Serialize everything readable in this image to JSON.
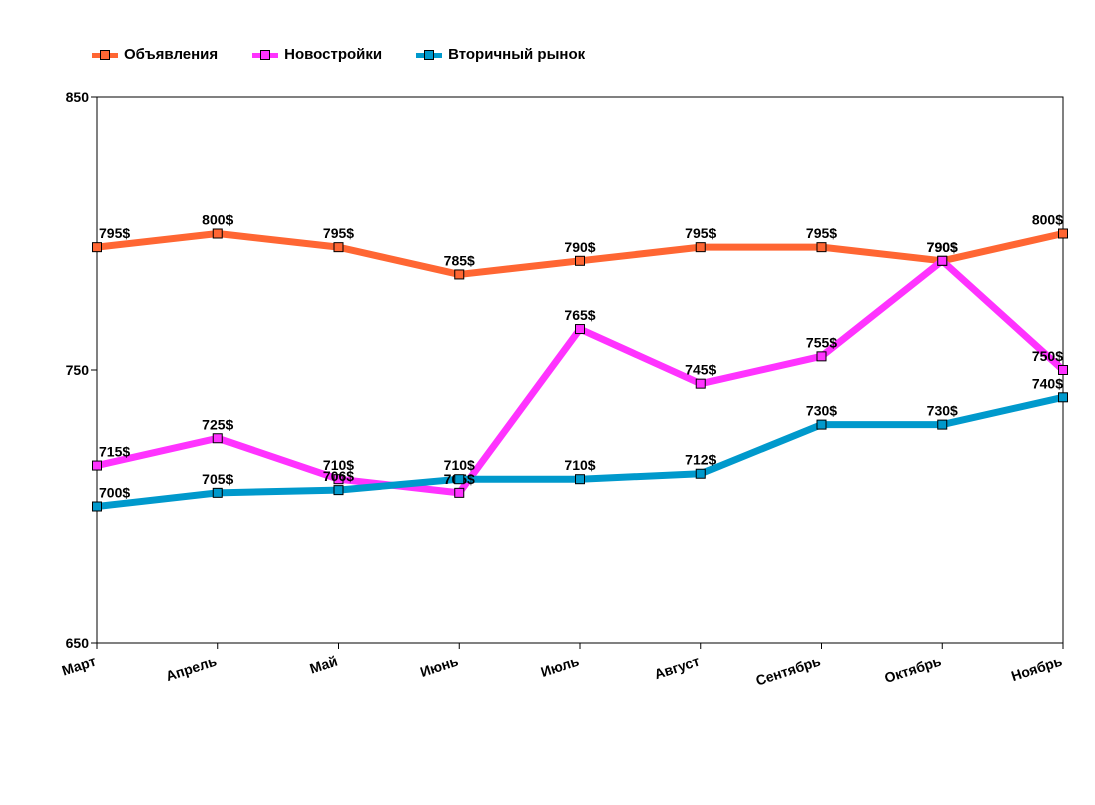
{
  "chart_data": {
    "type": "line",
    "categories": [
      "Март",
      "Апрель",
      "Май",
      "Июнь",
      "Июль",
      "Август",
      "Сентябрь",
      "Октябрь",
      "Ноябрь"
    ],
    "ylim": [
      650,
      850
    ],
    "yticks": [
      650,
      750,
      850
    ],
    "series": [
      {
        "name": "Объявления",
        "color": "#ff6633",
        "values": [
          795,
          800,
          795,
          785,
          790,
          795,
          795,
          790,
          800
        ],
        "labels": [
          "795$",
          "800$",
          "795$",
          "785$",
          "790$",
          "795$",
          "795$",
          "790$",
          "800$"
        ]
      },
      {
        "name": "Новостройки",
        "color": "#ff33ff",
        "values": [
          715,
          725,
          710,
          705,
          765,
          745,
          755,
          790,
          750
        ],
        "labels": [
          "715$",
          "725$",
          "710$",
          "705$",
          "765$",
          "745$",
          "755$",
          "790$",
          "750$"
        ]
      },
      {
        "name": "Вторичный рынок",
        "color": "#0099cc",
        "values": [
          700,
          705,
          706,
          710,
          710,
          712,
          730,
          730,
          740
        ],
        "labels": [
          "700$",
          "705$",
          "706$",
          "710$",
          "710$",
          "712$",
          "730$",
          "730$",
          "740$"
        ]
      }
    ]
  }
}
